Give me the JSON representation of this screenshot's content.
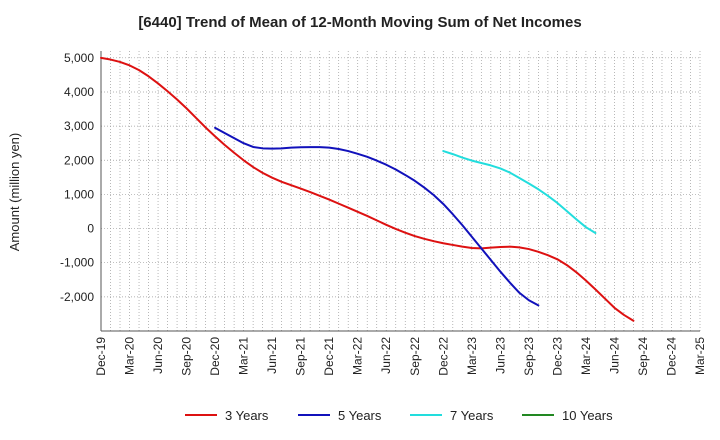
{
  "chart_data": {
    "type": "line",
    "title": "[6440]  Trend of Mean of 12-Month Moving Sum of Net Incomes",
    "xlabel": "",
    "ylabel": "Amount (million yen)",
    "ylim": [
      -3000,
      5200
    ],
    "yticks": [
      5000,
      4000,
      3000,
      2000,
      1000,
      0,
      -1000,
      -2000
    ],
    "ytick_labels": [
      "5,000",
      "4,000",
      "3,000",
      "2,000",
      "1,000",
      "0",
      "-1,000",
      "-2,000"
    ],
    "xticks": [
      "Dec-19",
      "Mar-20",
      "Jun-20",
      "Sep-20",
      "Dec-20",
      "Mar-21",
      "Jun-21",
      "Sep-21",
      "Dec-21",
      "Mar-22",
      "Jun-22",
      "Sep-22",
      "Dec-22",
      "Mar-23",
      "Jun-23",
      "Sep-23",
      "Dec-23",
      "Mar-24",
      "Jun-24",
      "Sep-24",
      "Dec-24",
      "Mar-25"
    ],
    "grid": true,
    "legend_position": "bottom",
    "series": [
      {
        "name": "3 Years",
        "color": "#dd1111",
        "start_month": 0,
        "values": [
          5000,
          4950,
          4880,
          4780,
          4640,
          4460,
          4250,
          4020,
          3780,
          3520,
          3240,
          2960,
          2700,
          2450,
          2220,
          2000,
          1800,
          1630,
          1490,
          1370,
          1270,
          1170,
          1070,
          960,
          850,
          730,
          610,
          490,
          370,
          240,
          110,
          -10,
          -120,
          -220,
          -300,
          -370,
          -430,
          -480,
          -530,
          -570,
          -580,
          -560,
          -540,
          -530,
          -550,
          -600,
          -680,
          -780,
          -900,
          -1070,
          -1280,
          -1520,
          -1780,
          -2050,
          -2320,
          -2530,
          -2700
        ]
      },
      {
        "name": "5 Years",
        "color": "#1111bb",
        "start_month": 12,
        "values": [
          2950,
          2800,
          2650,
          2500,
          2390,
          2350,
          2340,
          2350,
          2370,
          2380,
          2385,
          2385,
          2370,
          2330,
          2270,
          2190,
          2100,
          1990,
          1870,
          1730,
          1570,
          1400,
          1200,
          980,
          720,
          420,
          100,
          -240,
          -580,
          -920,
          -1260,
          -1580,
          -1880,
          -2100,
          -2250
        ]
      },
      {
        "name": "7 Years",
        "color": "#22dddd",
        "start_month": 36,
        "values": [
          2270,
          2180,
          2080,
          1990,
          1920,
          1850,
          1760,
          1640,
          1480,
          1320,
          1150,
          960,
          750,
          510,
          270,
          40,
          -130
        ]
      },
      {
        "name": "10 Years",
        "color": "#228822",
        "start_month": 0,
        "values": []
      }
    ]
  }
}
